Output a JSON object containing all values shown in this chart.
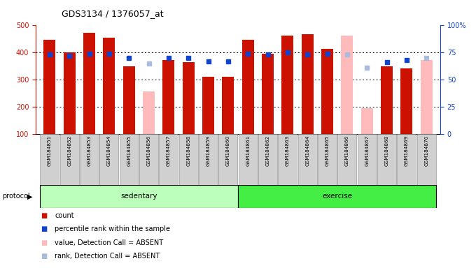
{
  "title": "GDS3134 / 1376057_at",
  "samples": [
    "GSM184851",
    "GSM184852",
    "GSM184853",
    "GSM184854",
    "GSM184855",
    "GSM184856",
    "GSM184857",
    "GSM184858",
    "GSM184859",
    "GSM184860",
    "GSM184861",
    "GSM184862",
    "GSM184863",
    "GSM184864",
    "GSM184865",
    "GSM184866",
    "GSM184867",
    "GSM184868",
    "GSM184869",
    "GSM184870"
  ],
  "count_values": [
    447,
    402,
    472,
    456,
    349,
    null,
    373,
    365,
    312,
    311,
    448,
    396,
    463,
    468,
    414,
    null,
    null,
    350,
    343,
    null
  ],
  "absent_values": [
    null,
    null,
    null,
    null,
    null,
    258,
    null,
    null,
    null,
    null,
    null,
    null,
    null,
    null,
    null,
    463,
    195,
    null,
    null,
    372
  ],
  "percentile_values": [
    73,
    72,
    74,
    74,
    70,
    null,
    70,
    70,
    67,
    67,
    74,
    73,
    75,
    73,
    74,
    null,
    null,
    66,
    68,
    null
  ],
  "absent_rank_values": [
    null,
    null,
    null,
    null,
    null,
    65,
    null,
    null,
    null,
    null,
    null,
    null,
    null,
    null,
    null,
    73,
    61,
    null,
    null,
    70
  ],
  "sedentary_count": 10,
  "exercise_count": 10,
  "ylim_left": [
    100,
    500
  ],
  "ylim_right": [
    0,
    100
  ],
  "yticks_left": [
    100,
    200,
    300,
    400,
    500
  ],
  "yticks_right_vals": [
    0,
    25,
    50,
    75,
    100
  ],
  "yticks_right_labels": [
    "0",
    "25",
    "50",
    "75",
    "100%"
  ],
  "bar_color_red": "#cc1100",
  "bar_color_pink": "#ffbbbb",
  "dot_color_blue": "#1144cc",
  "dot_color_lightblue": "#aabbdd",
  "bg_tick": "#d0d0d0",
  "bg_sedentary": "#bbffbb",
  "bg_exercise": "#44ee44",
  "legend_items": [
    "count",
    "percentile rank within the sample",
    "value, Detection Call = ABSENT",
    "rank, Detection Call = ABSENT"
  ],
  "legend_colors": [
    "#cc1100",
    "#1144cc",
    "#ffbbbb",
    "#aabbdd"
  ],
  "grid_dotted_at": [
    200,
    300,
    400
  ]
}
